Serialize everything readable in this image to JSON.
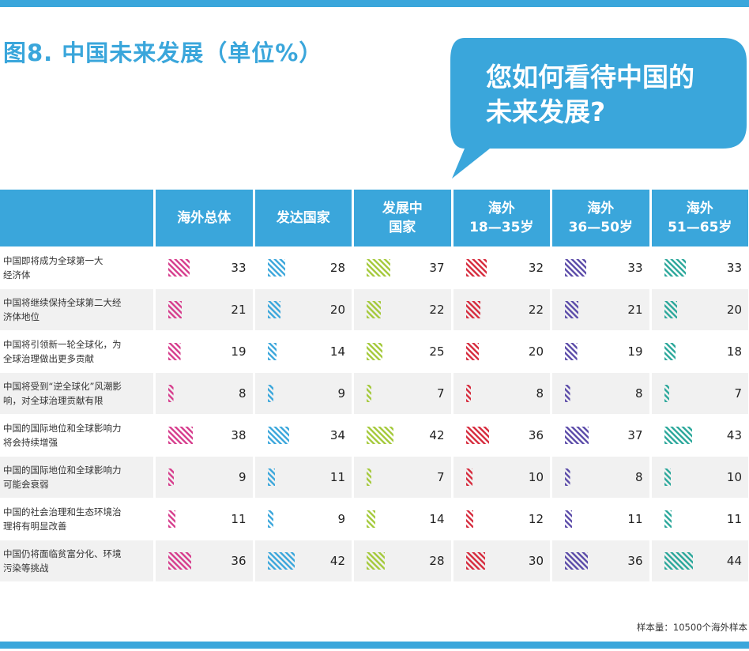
{
  "title": "图8. 中国未来发展（单位%）",
  "bubble": {
    "line1": "您如何看待中国的",
    "line2": "未来发展?"
  },
  "footnote": "样本量：10500个海外样本",
  "colors": {
    "header": "#3aa6db",
    "series": [
      "#d63c8c",
      "#3aa6db",
      "#a4c93a",
      "#d62a3c",
      "#5a4aa8",
      "#2aa79a"
    ]
  },
  "chart_data": {
    "type": "table",
    "columns": [
      {
        "lines": [
          "海外总体"
        ]
      },
      {
        "lines": [
          "发达国家"
        ]
      },
      {
        "lines": [
          "发展中",
          "国家"
        ]
      },
      {
        "lines": [
          "海外",
          "18—35岁"
        ]
      },
      {
        "lines": [
          "海外",
          "36—50岁"
        ]
      },
      {
        "lines": [
          "海外",
          "51—65岁"
        ]
      }
    ],
    "rows": [
      {
        "lines": [
          "中国即将成为全球第一大",
          "经济体"
        ],
        "values": [
          33,
          28,
          37,
          32,
          33,
          33
        ]
      },
      {
        "lines": [
          "中国将继续保持全球第二大经",
          "济体地位"
        ],
        "values": [
          21,
          20,
          22,
          22,
          21,
          20
        ]
      },
      {
        "lines": [
          "中国将引领新一轮全球化，为",
          "全球治理做出更多贡献"
        ],
        "values": [
          19,
          14,
          25,
          20,
          19,
          18
        ]
      },
      {
        "lines": [
          "中国将受到“逆全球化”风潮影",
          "响，对全球治理贡献有限"
        ],
        "values": [
          8,
          9,
          7,
          8,
          8,
          7
        ]
      },
      {
        "lines": [
          "中国的国际地位和全球影响力",
          "将会持续增强"
        ],
        "values": [
          38,
          34,
          42,
          36,
          37,
          43
        ]
      },
      {
        "lines": [
          "中国的国际地位和全球影响力",
          "可能会衰弱"
        ],
        "values": [
          9,
          11,
          7,
          10,
          8,
          10
        ]
      },
      {
        "lines": [
          "中国的社会治理和生态环境治",
          "理将有明显改善"
        ],
        "values": [
          11,
          9,
          14,
          12,
          11,
          11
        ]
      },
      {
        "lines": [
          "中国仍将面临贫富分化、环境",
          "污染等挑战"
        ],
        "values": [
          36,
          42,
          28,
          30,
          36,
          44
        ]
      }
    ]
  }
}
